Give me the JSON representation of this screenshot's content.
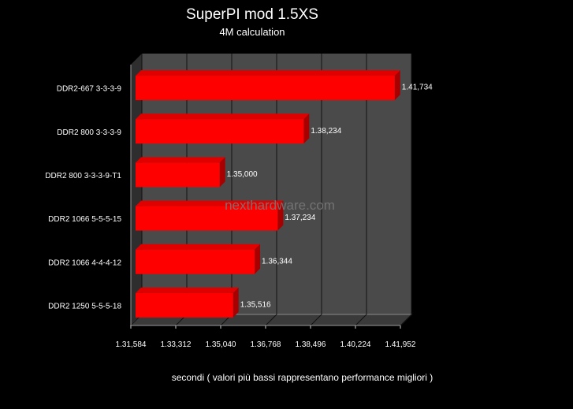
{
  "chart_data": {
    "type": "bar",
    "orientation": "horizontal",
    "title": "SuperPI mod 1.5XS",
    "subtitle": "4M calculation",
    "xlabel": "secondi ( valori  più bassi rappresentano performance migliori )",
    "ylabel": "",
    "categories": [
      "DDR2-667 3-3-3-9",
      "DDR2 800 3-3-3-9",
      "DDR2 800 3-3-3-9-T1",
      "DDR2 1066 5-5-5-15",
      "DDR2 1066 4-4-4-12",
      "DDR2 1250 5-5-5-18"
    ],
    "values": [
      101.734,
      98.234,
      95.0,
      97.234,
      96.344,
      95.516
    ],
    "value_labels": [
      "1.41,734",
      "1.38,234",
      "1.35,000",
      "1.37,234",
      "1.36,344",
      "1.35,516"
    ],
    "xlim": [
      91.584,
      101.952
    ],
    "x_ticks": [
      91.584,
      93.312,
      95.04,
      96.768,
      98.496,
      100.224,
      101.952
    ],
    "x_tick_labels": [
      "1.31,584",
      "1.33,312",
      "1.35,040",
      "1.36,768",
      "1.38,496",
      "1.40,224",
      "1.41,952"
    ],
    "grid": true,
    "legend": "none",
    "colors": {
      "bar": "#ff0000",
      "bar_top": "#e00000",
      "bar_side": "#a80000",
      "plot_back": "#4a4a4a",
      "plot_floor": "#3a3a3a",
      "plot_side": "#2e2e2e",
      "text": "#ffffff"
    },
    "watermark": "nexthardware.com"
  }
}
